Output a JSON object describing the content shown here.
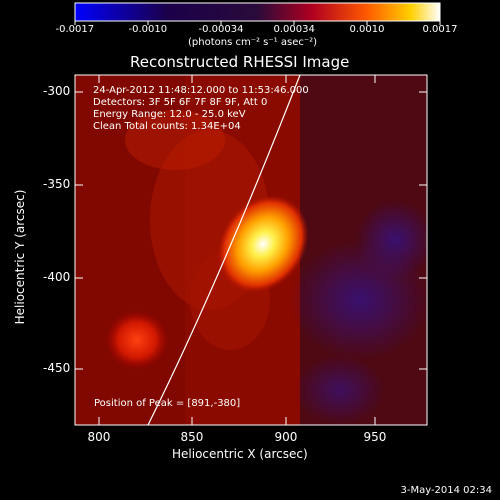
{
  "figure": {
    "title": "Reconstructed RHESSI Image",
    "footer_date": "3-May-2014 02:34",
    "colorbar": {
      "ticks": [
        "-0.0017",
        "-0.0010",
        "-0.00034",
        "0.00034",
        "0.0010",
        "0.0017"
      ],
      "unit_text": "(photons cm⁻² s⁻¹ asec⁻²)"
    },
    "info_lines": [
      "24-Apr-2012 11:48:12.000 to 11:53:46.000",
      "Detectors: 3F 5F 6F 7F 8F 9F, Att 0",
      "Energy Range: 12.0 - 25.0 keV",
      "Clean    Total counts: 1.34E+04"
    ],
    "peak_text": "Position of Peak = [891,-380]",
    "xaxis": {
      "label": "Heliocentric X (arcsec)",
      "ticks": [
        "800",
        "850",
        "900",
        "950"
      ]
    },
    "yaxis": {
      "label": "Heliocentric Y (arcsec)",
      "ticks": [
        "-300",
        "-350",
        "-400",
        "-450"
      ]
    },
    "colors": {
      "background": "#000000",
      "axes": "#ffffff"
    }
  }
}
